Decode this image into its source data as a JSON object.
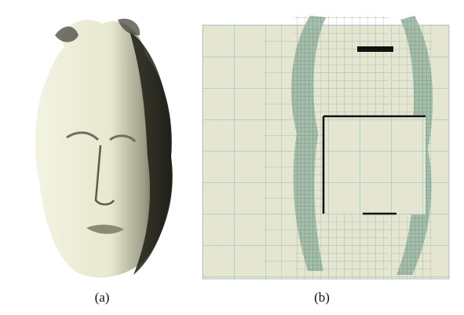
{
  "captions": [
    "(a)",
    "(b)"
  ]
}
